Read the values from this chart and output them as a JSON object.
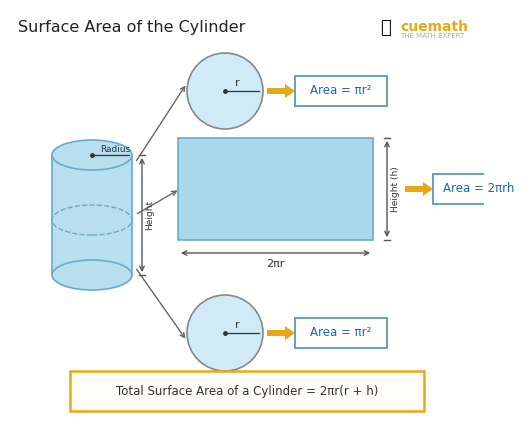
{
  "title": "Surface Area of the Cylinder",
  "title_fontsize": 11.5,
  "title_color": "#222222",
  "bg_color": "#ffffff",
  "formula_text": "Total Surface Area of a Cylinder = 2πr(r + h)",
  "formula_box_color": "#e6a817",
  "formula_text_color": "#333333",
  "formula_bg": "#fffdf5",
  "cylinder_color": "#b8dff0",
  "cylinder_edge": "#6aaac8",
  "circle_fill": "#d0eaf8",
  "circle_edge": "#888888",
  "rect_fill": "#a8d8ea",
  "rect_edge": "#6aaac8",
  "arrow_color": "#e6a817",
  "label_box_edge": "#5b9ab5",
  "label_box_fill": "#ffffff",
  "label_text_color": "#2266aa",
  "dim_arrow_color": "#555555",
  "area_top": "Area = πr²",
  "area_bottom": "Area = πr²",
  "area_side": "Area = 2πrh",
  "label_r": "r",
  "label_height_cyl": "Height",
  "label_radius_cyl": "Radius",
  "label_height_rect": "Height (h)",
  "label_width_rect": "2πr",
  "cuemath_text": "cuemath",
  "cuemath_subtext": "THE MATH EXPERT",
  "cuemath_color": "#e6a817"
}
